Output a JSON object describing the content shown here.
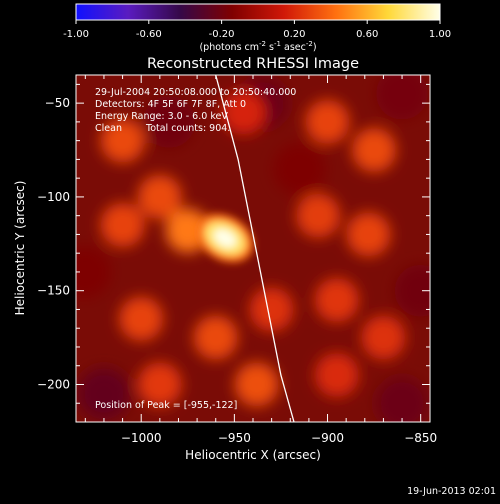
{
  "colorbar": {
    "ticks": [
      "-1.00",
      "-0.60",
      "-0.20",
      "0.20",
      "0.60",
      "1.00"
    ],
    "units": {
      "prefix": "(photons cm",
      "exp1": "-2",
      "mid1": " s",
      "exp2": "-1",
      "mid2": " asec",
      "exp3": "-2",
      "suffix": ")"
    }
  },
  "annotations": {
    "time": "29-Jul-2004 20:50:08.000 to 20:50:40.000",
    "detectors": "Detectors: 4F 5F 6F 7F 8F, Att 0",
    "energy": "Energy Range: 3.0 - 6.0 keV",
    "method": "Clean",
    "counts": "Total counts: 904.",
    "peak": "Position of Peak = [-955,-122]"
  },
  "footer": {
    "timestamp": "19-Jun-2013 02:01"
  },
  "colors": {
    "background": "#000000",
    "foreground": "#ffffff",
    "colormap": [
      "#1010ff",
      "#5a1cc0",
      "#350848",
      "#800000",
      "#d01808",
      "#ff7010",
      "#ffd838",
      "#ffffe8"
    ]
  },
  "chart_data": {
    "type": "heatmap",
    "title": "Reconstructed RHESSI Image",
    "xlabel": "Heliocentric X (arcsec)",
    "ylabel": "Heliocentric Y (arcsec)",
    "xlim": [
      -1035,
      -845
    ],
    "ylim": [
      -220,
      -35
    ],
    "xticks": [
      -1000,
      -950,
      -900,
      -850
    ],
    "yticks": [
      -50,
      -100,
      -150,
      -200
    ],
    "xtick_labels": [
      "−1000",
      "−950",
      "−900",
      "−850"
    ],
    "ytick_labels": [
      "−50",
      "−100",
      "−150",
      "−200"
    ],
    "colorbar_range": [
      -1.0,
      1.0
    ],
    "peak": {
      "x": -955,
      "y": -122,
      "value": 1.0
    },
    "limb": [
      [
        -960,
        -35
      ],
      [
        -948,
        -80
      ],
      [
        -940,
        -120
      ],
      [
        -932,
        -160
      ],
      [
        -925,
        -195
      ],
      [
        -918,
        -220
      ]
    ],
    "blobs": [
      {
        "x": -953,
        "y": -122,
        "value": 1.0
      },
      {
        "x": -975,
        "y": -118,
        "value": 0.45
      },
      {
        "x": -1010,
        "y": -70,
        "value": 0.3
      },
      {
        "x": -1010,
        "y": -115,
        "value": 0.28
      },
      {
        "x": -990,
        "y": -100,
        "value": 0.3
      },
      {
        "x": -1000,
        "y": -165,
        "value": 0.28
      },
      {
        "x": -960,
        "y": -175,
        "value": 0.3
      },
      {
        "x": -990,
        "y": -200,
        "value": 0.25
      },
      {
        "x": -938,
        "y": -200,
        "value": 0.32
      },
      {
        "x": -930,
        "y": -160,
        "value": 0.22
      },
      {
        "x": -900,
        "y": -60,
        "value": 0.28
      },
      {
        "x": -875,
        "y": -75,
        "value": 0.3
      },
      {
        "x": -905,
        "y": -110,
        "value": 0.26
      },
      {
        "x": -878,
        "y": -120,
        "value": 0.28
      },
      {
        "x": -895,
        "y": -155,
        "value": 0.24
      },
      {
        "x": -870,
        "y": -175,
        "value": 0.22
      },
      {
        "x": -895,
        "y": -195,
        "value": 0.2
      },
      {
        "x": -945,
        "y": -55,
        "value": 0.18
      }
    ],
    "voids": [
      {
        "x": -1020,
        "y": -205,
        "value": -0.25
      },
      {
        "x": -985,
        "y": -60,
        "value": -0.2
      },
      {
        "x": -935,
        "y": -50,
        "value": -0.22
      },
      {
        "x": -850,
        "y": -150,
        "value": -0.2
      },
      {
        "x": -860,
        "y": -210,
        "value": -0.22
      },
      {
        "x": -915,
        "y": -85,
        "value": -0.15
      },
      {
        "x": -1030,
        "y": -140,
        "value": -0.15
      },
      {
        "x": -860,
        "y": -45,
        "value": -0.18
      }
    ]
  }
}
